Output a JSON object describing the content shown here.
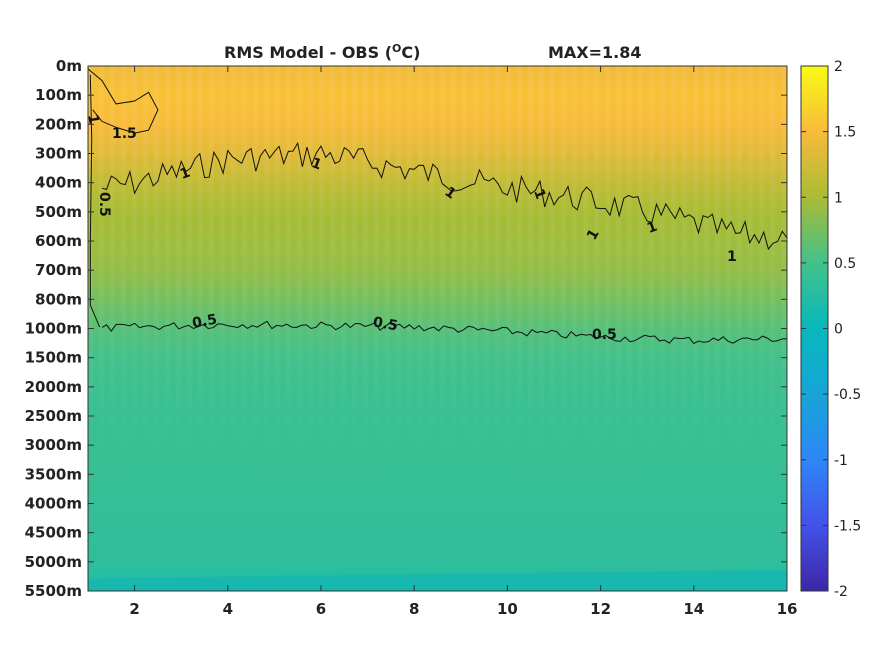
{
  "chart_data": {
    "type": "heatmap",
    "title": "RMS Model - OBS (",
    "title_sup": "O",
    "title_unit": "C)",
    "max_label": "MAX=1.84",
    "xlabel": "",
    "ylabel": "",
    "xlim": [
      1,
      16
    ],
    "x_ticks": [
      2,
      4,
      6,
      8,
      10,
      12,
      14,
      16
    ],
    "x_tick_labels": [
      "2",
      "4",
      "6",
      "8",
      "10",
      "12",
      "14",
      "16"
    ],
    "y_tick_labels": [
      "0m",
      "100m",
      "200m",
      "300m",
      "400m",
      "500m",
      "600m",
      "700m",
      "800m",
      "1000m",
      "1500m",
      "2000m",
      "2500m",
      "3000m",
      "3500m",
      "4000m",
      "4500m",
      "5000m",
      "5500m"
    ],
    "clim": [
      -2,
      2
    ],
    "colorbar_ticks": [
      2,
      1.5,
      1,
      0.5,
      0,
      -0.5,
      -1,
      -1.5,
      -2
    ],
    "colorbar_tick_labels": [
      "2",
      "1.5",
      "1",
      "0.5",
      "0",
      "-0.5",
      "-1",
      "-1.5",
      "-2"
    ],
    "depth_profile": {
      "depth_labels": [
        "0m",
        "100m",
        "200m",
        "300m",
        "400m",
        "500m",
        "600m",
        "700m",
        "800m",
        "1000m",
        "1500m",
        "2000m",
        "2500m",
        "3000m",
        "3500m",
        "4000m",
        "4500m",
        "5000m",
        "5500m"
      ],
      "values": [
        1.45,
        1.55,
        1.5,
        1.35,
        1.15,
        1.0,
        0.95,
        0.9,
        0.75,
        0.6,
        0.5,
        0.45,
        0.42,
        0.42,
        0.4,
        0.38,
        0.36,
        0.33,
        0.2
      ]
    },
    "contour_levels": [
      {
        "level": 1.5,
        "label": "1.5"
      },
      {
        "level": 1,
        "label": "1"
      },
      {
        "level": 0.5,
        "label": "0.5"
      }
    ],
    "contour_1_depth_index": {
      "x": [
        1.3,
        2,
        3,
        4,
        5,
        6,
        7,
        8,
        9,
        10,
        11,
        12,
        13,
        14,
        15,
        16
      ],
      "y": [
        4.2,
        4.0,
        3.6,
        3.2,
        3.1,
        3.0,
        3.3,
        3.6,
        3.9,
        4.2,
        4.4,
        4.7,
        5.0,
        5.4,
        5.8,
        5.9
      ]
    },
    "contour_05_depth_index": {
      "x": [
        1.3,
        2,
        4,
        6,
        8,
        10,
        12,
        14,
        16
      ],
      "y": [
        9.0,
        8.95,
        8.85,
        8.9,
        8.95,
        9.1,
        9.3,
        9.4,
        9.35
      ]
    },
    "contour_15_depth_index": {
      "x": [
        1.0,
        1.3,
        1.6,
        2.0,
        2.3,
        2.5,
        2.3,
        2.0,
        1.6,
        1.3,
        1.1
      ],
      "y": [
        0.1,
        0.5,
        1.3,
        1.2,
        0.9,
        1.5,
        2.2,
        2.3,
        2.1,
        1.9,
        1.5
      ]
    }
  }
}
